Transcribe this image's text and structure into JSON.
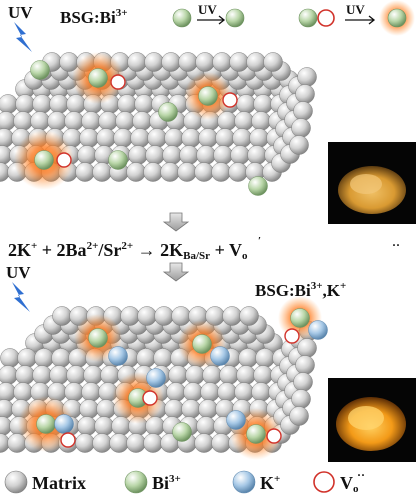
{
  "top": {
    "uv_label": "UV",
    "sample_label": "BSG:Bi",
    "sample_sup": "3+",
    "legend_uv_1": "UV",
    "legend_uv_2": "UV"
  },
  "equation": {
    "part_2k": "2K",
    "part_2k_sup": "+",
    "part_plus1": " + 2Ba",
    "part_ba_sup": "2+",
    "part_sr": "/Sr",
    "part_sr_sup": "2+",
    "part_arrow": " → 2K",
    "part_ksub": "Ba/Sr",
    "part_plus2": " + V",
    "part_o": "o",
    "part_dots": "··"
  },
  "bottom": {
    "uv_label": "UV",
    "sample_label": "BSG:Bi",
    "sample_sup": "3+",
    "sample_k": ",K",
    "sample_k_sup": "+"
  },
  "legend": {
    "matrix": "Matrix",
    "bi": "Bi",
    "bi_sup": "3+",
    "k": "K",
    "k_sup": "+",
    "vo": "V",
    "vo_o": "o",
    "vo_dots": "··"
  },
  "colors": {
    "matrix": "#c9c9c9",
    "bi": "#b6d3a6",
    "k": "#9fc3e3",
    "vacancy": "#d1322a",
    "glow": "#ff7a1e",
    "uv": "#2f6fd1",
    "photo_yellow": "#e3a83a",
    "photo_orange": "#f29a1a"
  }
}
